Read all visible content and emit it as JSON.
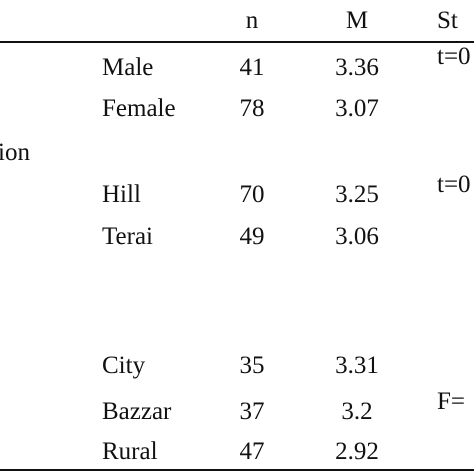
{
  "header": {
    "n": "n",
    "m": "M",
    "stat": "St"
  },
  "groups": [
    {
      "label": "",
      "stat": "t=0",
      "rows": [
        {
          "category": "Male",
          "n": "41",
          "m": "3.36"
        },
        {
          "category": "Female",
          "n": "78",
          "m": "3.07"
        }
      ]
    },
    {
      "label": "ion",
      "stat": "t=0",
      "rows": [
        {
          "category": "Hill",
          "n": "70",
          "m": "3.25"
        },
        {
          "category": "Terai",
          "n": "49",
          "m": "3.06"
        }
      ]
    },
    {
      "label": "",
      "stat": "F=",
      "rows": [
        {
          "category": "City",
          "n": "35",
          "m": "3.31"
        },
        {
          "category": "Bazzar",
          "n": "37",
          "m": "3.2"
        },
        {
          "category": "Rural",
          "n": "47",
          "m": "2.92"
        }
      ]
    }
  ]
}
